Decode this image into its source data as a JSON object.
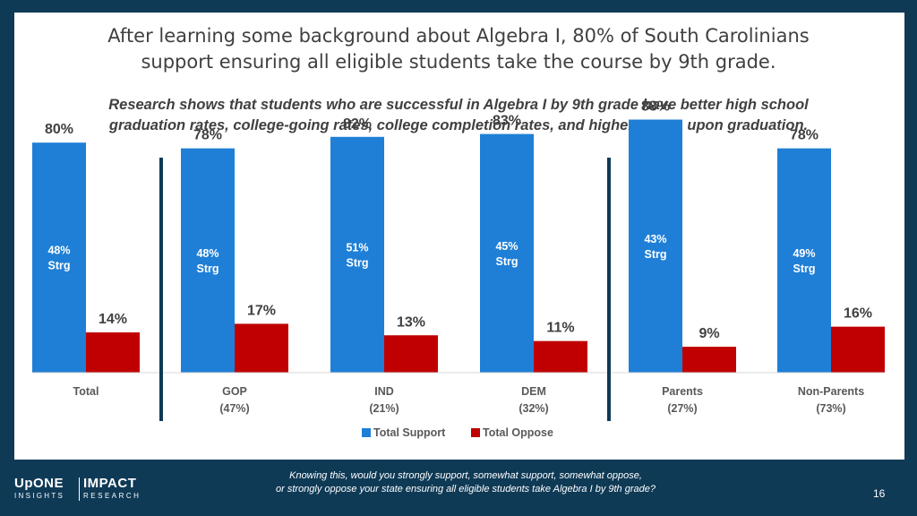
{
  "title_line1": "After learning some background about Algebra I, 80% of South Carolinians",
  "title_line2": "support ensuring all eligible students take the course by 9th grade.",
  "subtitle_line1": "Research shows that students who are successful in Algebra I by 9th grade have better high school",
  "subtitle_line2": "graduation rates, college-going rates, college completion rates, and higher wages upon graduation.",
  "footer": {
    "question_line1": "Knowing this, would you strongly support, somewhat support, somewhat oppose,",
    "question_line2": "or strongly oppose your state ensuring all eligible students take Algebra I by 9th grade?",
    "page_number": "16",
    "logo_left_top": "UpONE",
    "logo_left_bottom": "INSIGHTS",
    "logo_right_top": "IMPACT",
    "logo_right_bottom": "RESEARCH"
  },
  "colors": {
    "support": "#1f7fd6",
    "oppose": "#c00000",
    "divider": "#0f3a56",
    "label_text": "#595959",
    "value_text": "#404040"
  },
  "chart_data": {
    "type": "bar",
    "categories": [
      "Total",
      "GOP",
      "IND",
      "DEM",
      "Parents",
      "Non-Parents"
    ],
    "category_sublabels": [
      "",
      "(47%)",
      "(21%)",
      "(32%)",
      "(27%)",
      "(73%)"
    ],
    "series": [
      {
        "name": "Total Support",
        "values": [
          80,
          78,
          82,
          83,
          88,
          78
        ],
        "labels": [
          "80%",
          "78%",
          "82%",
          "83%",
          "88%",
          "78%"
        ]
      },
      {
        "name": "Total Oppose",
        "values": [
          14,
          17,
          13,
          11,
          9,
          16
        ],
        "labels": [
          "14%",
          "17%",
          "13%",
          "11%",
          "9%",
          "16%"
        ]
      }
    ],
    "inner_labels": [
      [
        "48%",
        "Strg"
      ],
      [
        "48%",
        "Strg"
      ],
      [
        "51%",
        "Strg"
      ],
      [
        "45%",
        "Strg"
      ],
      [
        "43%",
        "Strg"
      ],
      [
        "49%",
        "Strg"
      ]
    ],
    "ylim": [
      0,
      100
    ],
    "dividers_after": [
      "Total",
      "DEM"
    ],
    "legend_position": "bottom"
  }
}
